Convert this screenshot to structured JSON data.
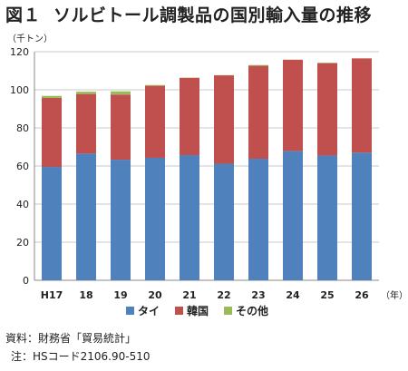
{
  "header": {
    "figure_label": "図１",
    "title": "ソルビトール調製品の国別輸入量の推移"
  },
  "chart_data": {
    "type": "bar",
    "stacked": true,
    "unit_label": "（千トン）",
    "x_unit_label": "（年）",
    "categories": [
      "H17",
      "18",
      "19",
      "20",
      "21",
      "22",
      "23",
      "24",
      "25",
      "26"
    ],
    "series": [
      {
        "name": "タイ",
        "color": "#4f81bd",
        "values": [
          59.5,
          66.5,
          63.3,
          64.3,
          65.7,
          61.2,
          63.8,
          67.8,
          65.5,
          67.0
        ]
      },
      {
        "name": "韓国",
        "color": "#c0504d",
        "values": [
          36.2,
          31.3,
          34.2,
          37.8,
          40.6,
          46.4,
          48.8,
          48.0,
          48.5,
          49.5
        ]
      },
      {
        "name": "その他",
        "color": "#9bbb59",
        "values": [
          1.1,
          1.2,
          1.7,
          0.4,
          0.1,
          0.1,
          0.4,
          0.0,
          0.2,
          0.0
        ]
      }
    ],
    "ylim": [
      0,
      120
    ],
    "yticks": [
      0,
      20,
      40,
      60,
      80,
      100,
      120
    ],
    "grid": true,
    "legend_position": "bottom"
  },
  "footer": {
    "source": "資料：財務省「貿易統計」",
    "note": "注：HSコード2106.90-510"
  }
}
